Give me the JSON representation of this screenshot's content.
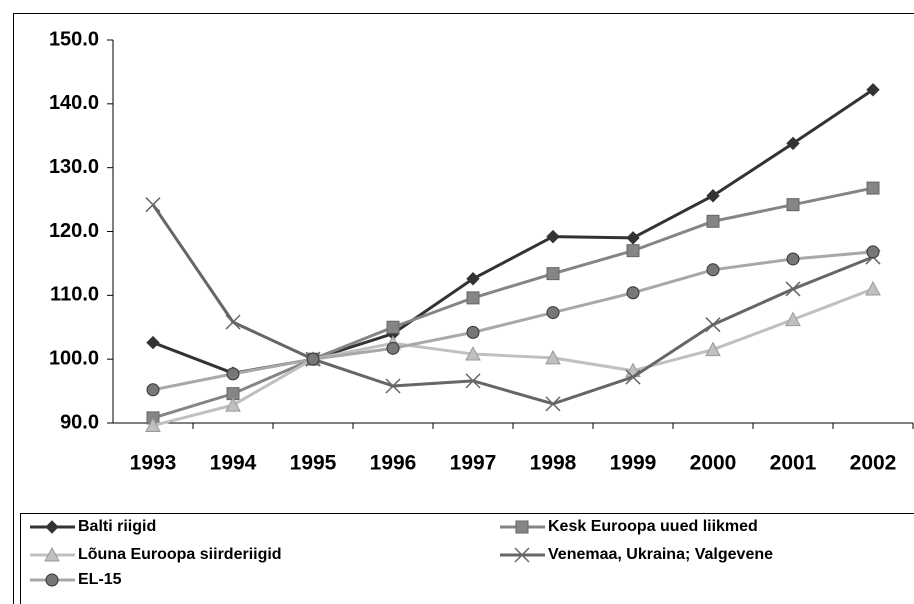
{
  "chart_data": {
    "type": "line",
    "categories": [
      "1993",
      "1994",
      "1995",
      "1996",
      "1997",
      "1998",
      "1999",
      "2000",
      "2001",
      "2002"
    ],
    "series": [
      {
        "name": "Balti riigid",
        "color": "#333333",
        "marker": "diamond",
        "values": [
          102.6,
          97.8,
          100,
          104,
          112.6,
          119.2,
          119,
          125.6,
          133.8,
          142.2
        ]
      },
      {
        "name": "Kesk Euroopa uued liikmed",
        "color": "#858585",
        "marker": "square",
        "values": [
          90.8,
          94.6,
          100,
          105,
          109.6,
          113.4,
          117,
          121.6,
          124.2,
          126.8
        ]
      },
      {
        "name": "Lõuna Euroopa siirderiigid",
        "color": "#c0c0c0",
        "marker": "triangle",
        "values": [
          89.6,
          92.8,
          100,
          102.5,
          100.8,
          100.2,
          98.2,
          101.5,
          106.2,
          111
        ]
      },
      {
        "name": "Venemaa, Ukraina; Valgevene",
        "color": "#666666",
        "marker": "x",
        "values": [
          124.2,
          105.8,
          100,
          95.8,
          96.6,
          93,
          97.2,
          105.4,
          111,
          116
        ]
      },
      {
        "name": "EL-15",
        "color": "#a8a8a8",
        "marker": "circle",
        "values": [
          95.2,
          97.7,
          100,
          101.7,
          104.2,
          107.3,
          110.4,
          114,
          115.7,
          116.8
        ]
      }
    ],
    "ylim": [
      90,
      150
    ],
    "yticks": [
      {
        "value": 90,
        "label": "90.0"
      },
      {
        "value": 100,
        "label": "100.0"
      },
      {
        "value": 110,
        "label": "110.0"
      },
      {
        "value": 120,
        "label": "120.0"
      },
      {
        "value": 130,
        "label": "130.0"
      },
      {
        "value": 140,
        "label": "140.0"
      },
      {
        "value": 150,
        "label": "150.0"
      }
    ],
    "legend": "bottom"
  }
}
